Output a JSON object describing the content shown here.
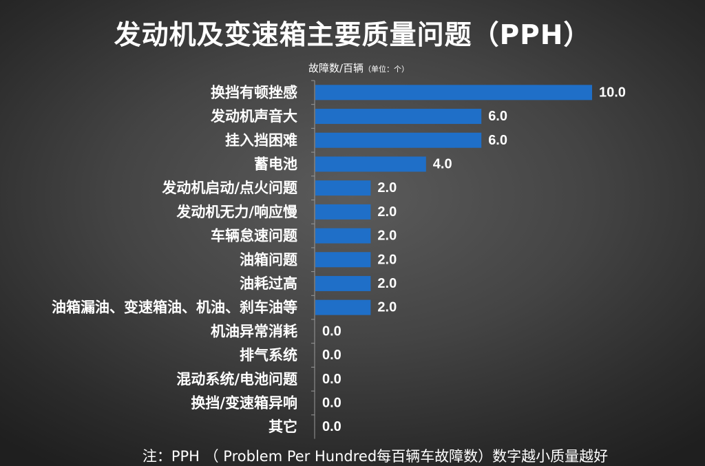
{
  "chart_data": {
    "type": "bar",
    "orientation": "horizontal",
    "title": "发动机及变速箱主要质量问题（PPH）",
    "unit_label": "故障数/百辆",
    "unit_note": "（单位：个）",
    "categories": [
      "换挡有顿挫感",
      "发动机声音大",
      "挂入挡困难",
      "蓄电池",
      "发动机启动/点火问题",
      "发动机无力/响应慢",
      "车辆怠速问题",
      "油箱问题",
      "油耗过高",
      "油箱漏油、变速箱油、机油、刹车油等",
      "机油异常消耗",
      "排气系统",
      "混动系统/电池问题",
      "换挡/变速箱异响",
      "其它"
    ],
    "values": [
      10.0,
      6.0,
      6.0,
      4.0,
      2.0,
      2.0,
      2.0,
      2.0,
      2.0,
      2.0,
      0.0,
      0.0,
      0.0,
      0.0,
      0.0
    ],
    "value_labels": [
      "10.0",
      "6.0",
      "6.0",
      "4.0",
      "2.0",
      "2.0",
      "2.0",
      "2.0",
      "2.0",
      "2.0",
      "0.0",
      "0.0",
      "0.0",
      "0.0",
      "0.0"
    ],
    "xlim": [
      0,
      10
    ],
    "bar_color": "#1f6fc8",
    "grid": false,
    "legend": "none"
  },
  "footnote": "注：PPH （ Problem Per Hundred每百辆车故障数）数字越小质量越好"
}
